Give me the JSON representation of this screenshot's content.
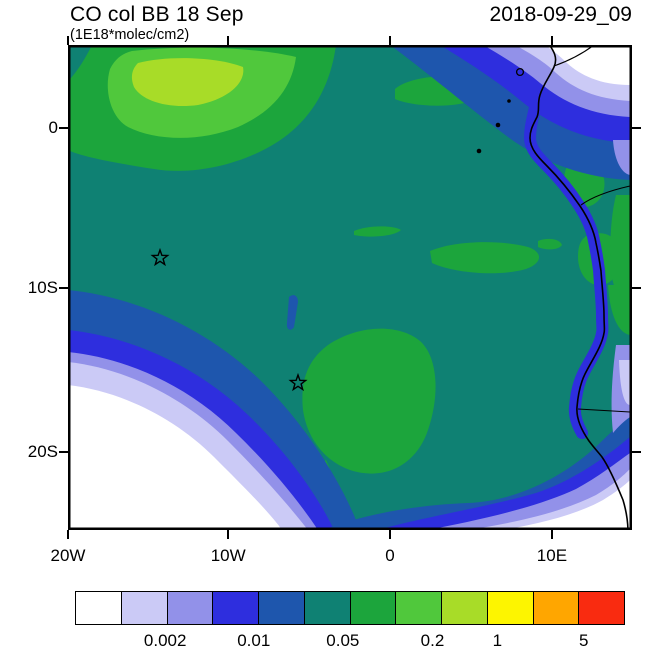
{
  "header": {
    "title": "CO col BB 18 Sep",
    "subtitle": "(1E18*molec/cm2)",
    "timestamp": "2018-09-29_09"
  },
  "colors": {
    "ink": "#000000",
    "background": "#ffffff"
  },
  "axes": {
    "y": [
      {
        "label": "0",
        "f": 0.171
      },
      {
        "label": "10S",
        "f": 0.501
      },
      {
        "label": "20S",
        "f": 0.839
      }
    ],
    "x": [
      {
        "label": "20W",
        "f": 0.0
      },
      {
        "label": "10W",
        "f": 0.284
      },
      {
        "label": "0",
        "f": 0.571
      },
      {
        "label": "10E",
        "f": 0.858
      }
    ]
  },
  "colorbar": {
    "colors": [
      "#ffffff",
      "#cbcaf6",
      "#9291e9",
      "#2e2ede",
      "#1e56ad",
      "#0f8173",
      "#1ca53c",
      "#50c83c",
      "#a8dc28",
      "#fdf500",
      "#ffa600",
      "#f92b10"
    ],
    "ticks": [
      {
        "label": "0.002",
        "f": 0.164
      },
      {
        "label": "0.01",
        "f": 0.325
      },
      {
        "label": "0.05",
        "f": 0.487
      },
      {
        "label": "0.2",
        "f": 0.65
      },
      {
        "label": "1",
        "f": 0.768
      },
      {
        "label": "5",
        "f": 0.925
      }
    ]
  },
  "chart_data": {
    "type": "heatmap",
    "subtype": "filled-contour-map",
    "title": "CO col BB 18 Sep",
    "units_label": "(1E18*molec/cm2)",
    "time_label": "2018-09-29_09",
    "x_tick_labels": [
      "20W",
      "10W",
      "0",
      "10E"
    ],
    "y_tick_labels": [
      "0",
      "10S",
      "20S"
    ],
    "lon_range_deg": [
      -20,
      15
    ],
    "lat_range_deg": [
      -25,
      5
    ],
    "colorbar_tick_labels": [
      "0.002",
      "0.01",
      "0.05",
      "0.2",
      "1",
      "5"
    ],
    "colorbar_colors": [
      "#ffffff",
      "#cbcaf6",
      "#9291e9",
      "#2e2ede",
      "#1e56ad",
      "#0f8173",
      "#1ca53c",
      "#50c83c",
      "#a8dc28",
      "#fdf500",
      "#ffa600",
      "#f92b10"
    ],
    "markers": [
      {
        "symbol": "star",
        "lon": -14.3,
        "lat": -8.0
      },
      {
        "symbol": "star",
        "lon": -5.7,
        "lat": -15.8
      }
    ],
    "features": [
      "mid-range teal field covers most of the ocean domain",
      "green (higher values) over the northwest quadrant with a bright green-lime core",
      "green blob over the south-central ocean around 13S-22S, 8W-3W, reaching the bottom edge",
      "scattered green patches near 4S-8S east of 2E and along the African coast",
      "low-value white lobes ringed by lavender/blue bands in the southwest corner, northeast corner and bottom-right",
      "thin blue band hugging the bottom edge connecting the two low-value lobes",
      "dark-blue coastal strip along the Gabon/Congo/Angola coast",
      "African coastline and country borders drawn in black on the right side",
      "two open star markers over the ocean (Ascension / St. Helena locations)"
    ]
  }
}
